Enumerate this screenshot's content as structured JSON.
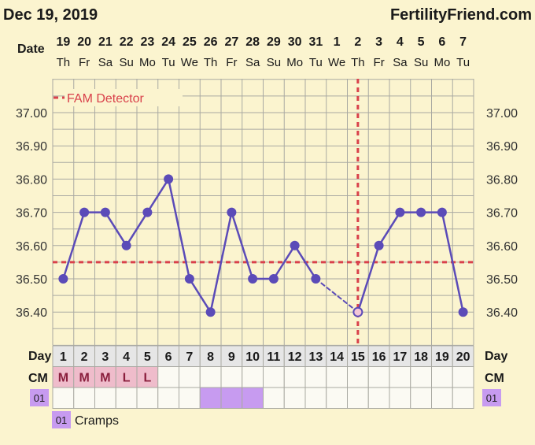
{
  "header": {
    "date_title": "Dec 19, 2019",
    "brand": "FertilityFriend.com"
  },
  "labels": {
    "date": "Date",
    "day": "Day",
    "cm": "CM",
    "fam_detector": "FAM Detector"
  },
  "colors": {
    "background": "#fbf4cf",
    "line": "#5b4bb8",
    "coverline": "#d9414b",
    "grid": "#a9a9a2",
    "cm_fill": "#efbccb",
    "cramps_fill": "#c79bf0",
    "day_row_fill": "#e6e6e6"
  },
  "chart_data": {
    "type": "line",
    "dates": [
      "19",
      "20",
      "21",
      "22",
      "23",
      "24",
      "25",
      "26",
      "27",
      "28",
      "29",
      "30",
      "31",
      "1",
      "2",
      "3",
      "4",
      "5",
      "6",
      "7"
    ],
    "weekdays": [
      "Th",
      "Fr",
      "Sa",
      "Su",
      "Mo",
      "Tu",
      "We",
      "Th",
      "Fr",
      "Sa",
      "Su",
      "Mo",
      "Tu",
      "We",
      "Th",
      "Fr",
      "Sa",
      "Su",
      "Mo",
      "Tu"
    ],
    "cycle_days": [
      1,
      2,
      3,
      4,
      5,
      6,
      7,
      8,
      9,
      10,
      11,
      12,
      13,
      14,
      15,
      16,
      17,
      18,
      19,
      20
    ],
    "temperatures": [
      36.5,
      36.7,
      36.7,
      36.6,
      36.7,
      36.8,
      36.5,
      36.4,
      36.7,
      36.5,
      36.5,
      36.6,
      36.5,
      null,
      36.4,
      36.6,
      36.7,
      36.7,
      36.7,
      36.4
    ],
    "y_ticks": [
      "37.00",
      "36.90",
      "36.80",
      "36.70",
      "36.60",
      "36.50",
      "36.40"
    ],
    "ylim": [
      36.33,
      37.07
    ],
    "coverline": 36.55,
    "ovulation_day": 15,
    "grid": true,
    "legend": "top-left"
  },
  "cm": [
    "M",
    "M",
    "M",
    "L",
    "L",
    "",
    "",
    "",
    "",
    "",
    "",
    "",
    "",
    "",
    "",
    "",
    "",
    "",
    "",
    ""
  ],
  "cramps": {
    "code": "01",
    "label": "Cramps",
    "days": [
      8,
      9,
      10
    ]
  }
}
